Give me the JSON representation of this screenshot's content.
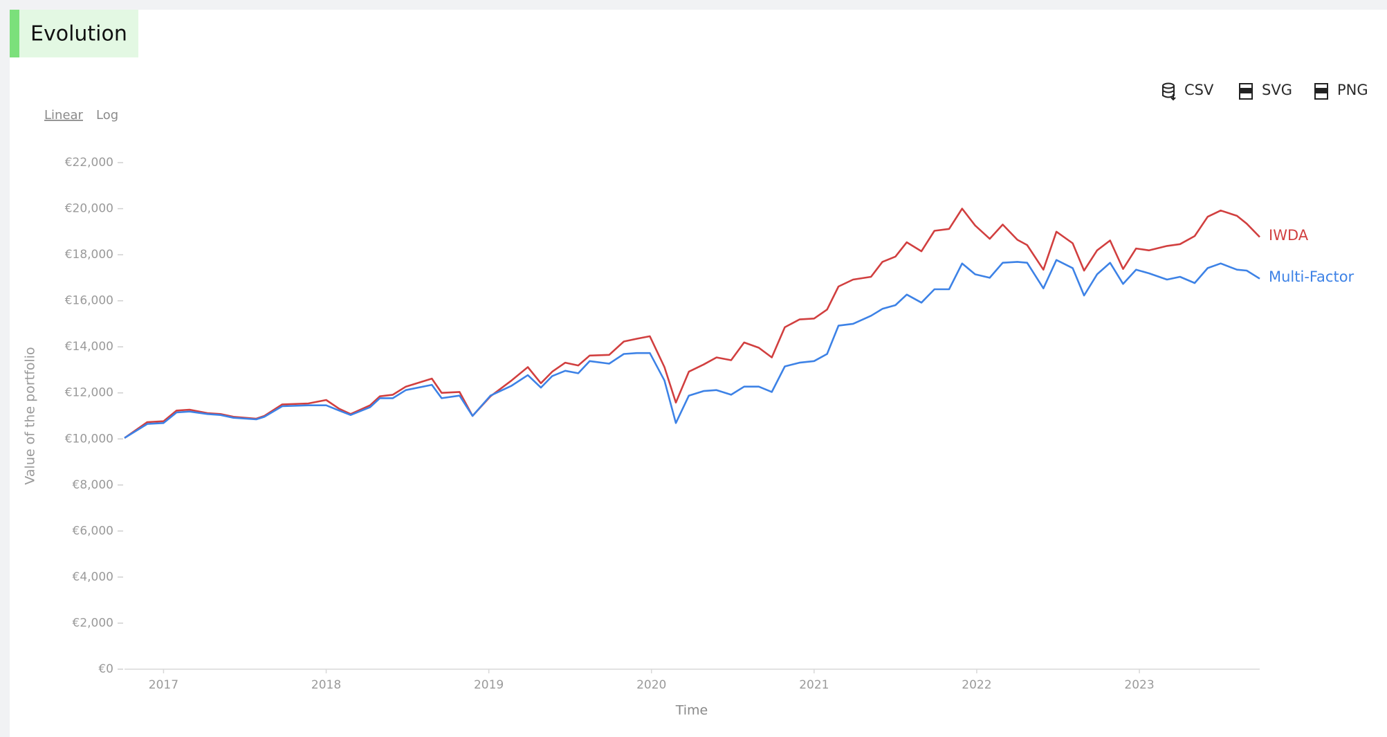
{
  "header": {
    "title": "Evolution"
  },
  "controls": {
    "scale": [
      "Linear",
      "Log"
    ],
    "exports": [
      "CSV",
      "SVG",
      "PNG"
    ]
  },
  "chart_data": {
    "type": "line",
    "x_label": "Time",
    "y_label": "Value of the portfolio",
    "log_scale": false,
    "xlim": [
      2016.76,
      2023.74
    ],
    "xticks": [
      2017,
      2018,
      2019,
      2020,
      2021,
      2022,
      2023
    ],
    "ylim": [
      0,
      22000
    ],
    "yticks": [
      {
        "value": 0,
        "label": "€0"
      },
      {
        "value": 2000,
        "label": "€2,000"
      },
      {
        "value": 4000,
        "label": "€4,000"
      },
      {
        "value": 6000,
        "label": "€6,000"
      },
      {
        "value": 8000,
        "label": "€8,000"
      },
      {
        "value": 10000,
        "label": "€10,000"
      },
      {
        "value": 12000,
        "label": "€12,000"
      },
      {
        "value": 14000,
        "label": "€14,000"
      },
      {
        "value": 16000,
        "label": "€16,000"
      },
      {
        "value": 18000,
        "label": "€18,000"
      },
      {
        "value": 20000,
        "label": "€20,000"
      },
      {
        "value": 22000,
        "label": "€22,000"
      }
    ],
    "x": [
      2016.76,
      2016.9,
      2017.0,
      2017.08,
      2017.16,
      2017.27,
      2017.35,
      2017.43,
      2017.57,
      2017.62,
      2017.73,
      2017.89,
      2018.0,
      2018.08,
      2018.15,
      2018.27,
      2018.33,
      2018.41,
      2018.49,
      2018.65,
      2018.71,
      2018.82,
      2018.9,
      2019.01,
      2019.14,
      2019.24,
      2019.32,
      2019.39,
      2019.47,
      2019.55,
      2019.62,
      2019.74,
      2019.83,
      2019.91,
      2019.99,
      2020.08,
      2020.15,
      2020.23,
      2020.32,
      2020.4,
      2020.49,
      2020.57,
      2020.66,
      2020.74,
      2020.82,
      2020.91,
      2021.0,
      2021.08,
      2021.15,
      2021.24,
      2021.35,
      2021.42,
      2021.5,
      2021.57,
      2021.66,
      2021.74,
      2021.83,
      2021.91,
      2021.99,
      2022.08,
      2022.16,
      2022.25,
      2022.31,
      2022.41,
      2022.49,
      2022.59,
      2022.66,
      2022.74,
      2022.82,
      2022.9,
      2022.98,
      2023.06,
      2023.17,
      2023.25,
      2023.34,
      2023.42,
      2023.5,
      2023.6,
      2023.66,
      2023.74
    ],
    "series": [
      {
        "name": "IWDA",
        "color": "#d13f3f",
        "values": [
          10040,
          10730,
          10770,
          11230,
          11270,
          11120,
          11080,
          10960,
          10880,
          11000,
          11500,
          11540,
          11690,
          11310,
          11080,
          11460,
          11850,
          11920,
          12270,
          12620,
          12000,
          12040,
          11000,
          11850,
          12540,
          13120,
          12420,
          12920,
          13310,
          13190,
          13620,
          13650,
          14230,
          14350,
          14460,
          13120,
          11580,
          12920,
          13230,
          13540,
          13420,
          14190,
          13960,
          13540,
          14850,
          15190,
          15230,
          15620,
          16620,
          16920,
          17040,
          17690,
          17920,
          18540,
          18150,
          19040,
          19120,
          20000,
          19270,
          18690,
          19310,
          18650,
          18420,
          17350,
          19000,
          18500,
          17310,
          18190,
          18620,
          17380,
          18270,
          18190,
          18380,
          18460,
          18810,
          19650,
          19920,
          19690,
          19350,
          18770
        ]
      },
      {
        "name": "Multi-Factor",
        "color": "#3d82e6",
        "values": [
          10040,
          10650,
          10690,
          11150,
          11190,
          11080,
          11040,
          10920,
          10850,
          10960,
          11420,
          11460,
          11460,
          11230,
          11040,
          11380,
          11770,
          11770,
          12120,
          12350,
          11770,
          11880,
          11000,
          11880,
          12310,
          12770,
          12230,
          12730,
          12960,
          12850,
          13380,
          13270,
          13690,
          13730,
          13730,
          12540,
          10690,
          11880,
          12080,
          12120,
          11920,
          12270,
          12270,
          12040,
          13150,
          13310,
          13380,
          13690,
          14920,
          15000,
          15350,
          15650,
          15810,
          16270,
          15920,
          16500,
          16500,
          17620,
          17150,
          17000,
          17650,
          17690,
          17650,
          16540,
          17770,
          17420,
          16230,
          17150,
          17650,
          16730,
          17350,
          17190,
          16920,
          17040,
          16770,
          17420,
          17620,
          17350,
          17310,
          16960
        ]
      }
    ]
  }
}
